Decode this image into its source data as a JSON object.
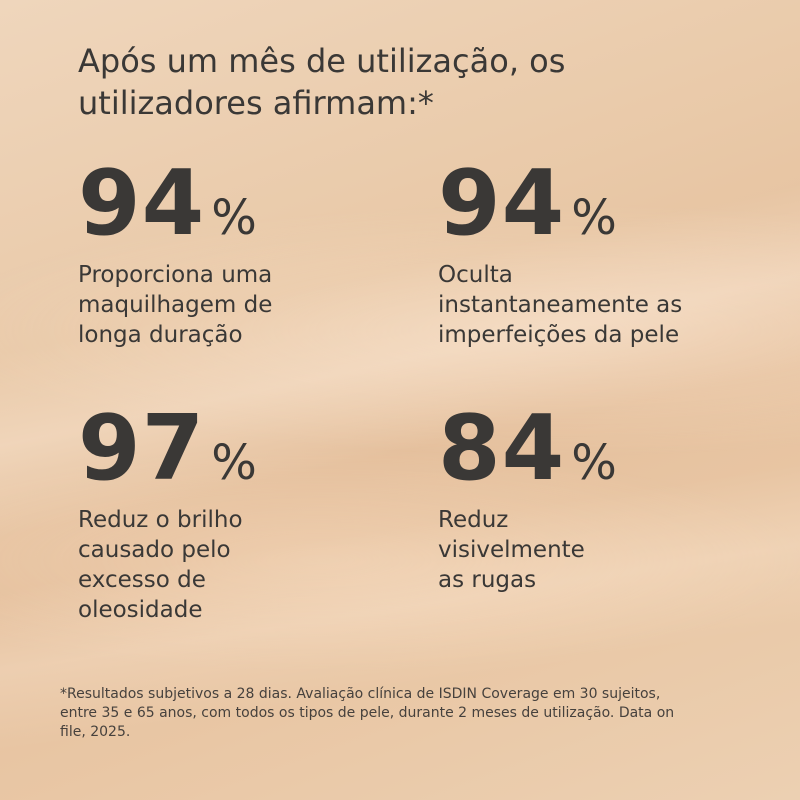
{
  "headline": {
    "line1": "Após um mês de utilização, os",
    "line2": "utilizadores afirmam:*"
  },
  "stats": [
    {
      "value": "94",
      "unit": "%",
      "desc": [
        "Proporciona uma",
        "maquilhagem de",
        "longa duração"
      ]
    },
    {
      "value": "94",
      "unit": "%",
      "desc": [
        "Oculta",
        "instantaneamente as",
        "imperfeições da pele"
      ]
    },
    {
      "value": "97",
      "unit": "%",
      "desc": [
        "Reduz o brilho",
        "causado pelo",
        "excesso de",
        "oleosidade"
      ]
    },
    {
      "value": "84",
      "unit": "%",
      "desc": [
        "Reduz",
        "visivelmente",
        "as rugas"
      ]
    }
  ],
  "footnote": {
    "line1": "*Resultados subjetivos a 28 dias. Avaliação clínica de ISDIN Coverage em 30 sujeitos,",
    "line2": "entre 35 e 65 anos, com todos os tipos de pele, durante 2 meses de utilização. Data on",
    "line3": "file, 2025."
  },
  "colors": {
    "text": "#3a3836",
    "background": "#e9c9a8"
  }
}
